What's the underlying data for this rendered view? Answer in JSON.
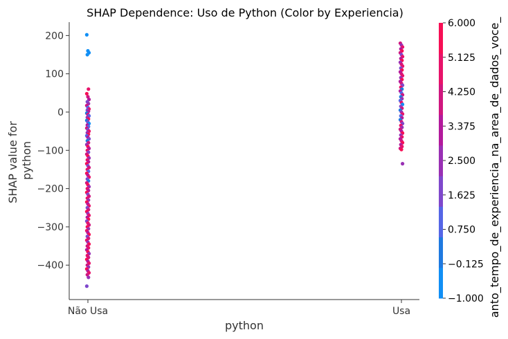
{
  "chart_data": {
    "type": "scatter",
    "title": "SHAP Dependence: Uso de Python (Color by Experiencia)",
    "xlabel": "python",
    "ylabel_lines": [
      "SHAP value for",
      "python"
    ],
    "categories": [
      "Não Usa",
      "Usa"
    ],
    "ylim": [
      -490,
      235
    ],
    "yticks": [
      {
        "value": 200,
        "label": "200"
      },
      {
        "value": 100,
        "label": "100"
      },
      {
        "value": 0,
        "label": "0"
      },
      {
        "value": -100,
        "label": "−100"
      },
      {
        "value": -200,
        "label": "−200"
      },
      {
        "value": -300,
        "label": "−300"
      },
      {
        "value": -400,
        "label": "−400"
      }
    ],
    "colorbar": {
      "label": "anto_tempo_de_experiencia_na_area_de_dados_voce_",
      "min": -1.0,
      "max": 6.0,
      "ticks": [
        "6.000",
        "5.125",
        "4.250",
        "3.375",
        "2.500",
        "1.625",
        "0.750",
        "−0.125",
        "−1.000"
      ],
      "colors": [
        "#118ff5",
        "#1f7ae0",
        "#5566e6",
        "#7f48cc",
        "#9930b4",
        "#b31a9c",
        "#d0177f",
        "#e8136a",
        "#f70f55"
      ]
    },
    "series": [
      {
        "name": "Não Usa",
        "x": 0,
        "points": [
          [
            202,
            0
          ],
          [
            160,
            0
          ],
          [
            155,
            0
          ],
          [
            150,
            0
          ],
          [
            60,
            7
          ],
          [
            48,
            8
          ],
          [
            40,
            6
          ],
          [
            33,
            5
          ],
          [
            27,
            3
          ],
          [
            22,
            4
          ],
          [
            17,
            6
          ],
          [
            12,
            2
          ],
          [
            8,
            7
          ],
          [
            5,
            3
          ],
          [
            2,
            5
          ],
          [
            -3,
            1
          ],
          [
            -6,
            6
          ],
          [
            -10,
            2
          ],
          [
            -14,
            4
          ],
          [
            -18,
            8
          ],
          [
            -22,
            1
          ],
          [
            -26,
            3
          ],
          [
            -30,
            0
          ],
          [
            -34,
            5
          ],
          [
            -38,
            2
          ],
          [
            -42,
            6
          ],
          [
            -46,
            3
          ],
          [
            -50,
            7
          ],
          [
            -54,
            4
          ],
          [
            -58,
            8
          ],
          [
            -62,
            2
          ],
          [
            -66,
            5
          ],
          [
            -70,
            3
          ],
          [
            -75,
            1
          ],
          [
            -80,
            6
          ],
          [
            -85,
            4
          ],
          [
            -90,
            8
          ],
          [
            -95,
            5
          ],
          [
            -100,
            7
          ],
          [
            -105,
            3
          ],
          [
            -110,
            6
          ],
          [
            -115,
            8
          ],
          [
            -120,
            4
          ],
          [
            -125,
            7
          ],
          [
            -130,
            5
          ],
          [
            -135,
            8
          ],
          [
            -140,
            3
          ],
          [
            -145,
            6
          ],
          [
            -150,
            7
          ],
          [
            -155,
            2
          ],
          [
            -160,
            8
          ],
          [
            -165,
            5
          ],
          [
            -170,
            7
          ],
          [
            -175,
            3
          ],
          [
            -180,
            1
          ],
          [
            -185,
            6
          ],
          [
            -190,
            8
          ],
          [
            -195,
            4
          ],
          [
            -200,
            7
          ],
          [
            -205,
            5
          ],
          [
            -210,
            8
          ],
          [
            -215,
            3
          ],
          [
            -220,
            6
          ],
          [
            -225,
            7
          ],
          [
            -230,
            4
          ],
          [
            -235,
            8
          ],
          [
            -240,
            5
          ],
          [
            -245,
            7
          ],
          [
            -250,
            3
          ],
          [
            -255,
            6
          ],
          [
            -260,
            8
          ],
          [
            -265,
            4
          ],
          [
            -270,
            7
          ],
          [
            -275,
            5
          ],
          [
            -280,
            8
          ],
          [
            -285,
            3
          ],
          [
            -290,
            7
          ],
          [
            -295,
            6
          ],
          [
            -300,
            8
          ],
          [
            -305,
            4
          ],
          [
            -310,
            7
          ],
          [
            -315,
            5
          ],
          [
            -320,
            8
          ],
          [
            -325,
            3
          ],
          [
            -330,
            6
          ],
          [
            -335,
            7
          ],
          [
            -340,
            4
          ],
          [
            -345,
            8
          ],
          [
            -350,
            6
          ],
          [
            -355,
            7
          ],
          [
            -360,
            5
          ],
          [
            -365,
            8
          ],
          [
            -370,
            4
          ],
          [
            -375,
            7
          ],
          [
            -380,
            6
          ],
          [
            -385,
            8
          ],
          [
            -390,
            5
          ],
          [
            -395,
            7
          ],
          [
            -400,
            6
          ],
          [
            -405,
            4
          ],
          [
            -410,
            8
          ],
          [
            -415,
            5
          ],
          [
            -420,
            7
          ],
          [
            -425,
            6
          ],
          [
            -432,
            4
          ],
          [
            -455,
            3
          ]
        ]
      },
      {
        "name": "Usa",
        "x": 1,
        "points": [
          [
            180,
            6
          ],
          [
            175,
            4
          ],
          [
            170,
            7
          ],
          [
            165,
            5
          ],
          [
            160,
            8
          ],
          [
            155,
            6
          ],
          [
            150,
            3
          ],
          [
            145,
            7
          ],
          [
            140,
            5
          ],
          [
            135,
            8
          ],
          [
            130,
            4
          ],
          [
            125,
            6
          ],
          [
            120,
            7
          ],
          [
            115,
            3
          ],
          [
            110,
            8
          ],
          [
            105,
            5
          ],
          [
            100,
            6
          ],
          [
            95,
            7
          ],
          [
            90,
            4
          ],
          [
            85,
            8
          ],
          [
            80,
            5
          ],
          [
            75,
            6
          ],
          [
            70,
            3
          ],
          [
            65,
            7
          ],
          [
            60,
            1
          ],
          [
            55,
            5
          ],
          [
            50,
            2
          ],
          [
            45,
            6
          ],
          [
            40,
            1
          ],
          [
            35,
            4
          ],
          [
            30,
            2
          ],
          [
            25,
            7
          ],
          [
            20,
            0
          ],
          [
            15,
            3
          ],
          [
            10,
            6
          ],
          [
            5,
            1
          ],
          [
            0,
            4
          ],
          [
            -5,
            7
          ],
          [
            -10,
            2
          ],
          [
            -15,
            5
          ],
          [
            -20,
            1
          ],
          [
            -25,
            6
          ],
          [
            -30,
            3
          ],
          [
            -35,
            7
          ],
          [
            -40,
            4
          ],
          [
            -45,
            6
          ],
          [
            -50,
            5
          ],
          [
            -55,
            8
          ],
          [
            -60,
            4
          ],
          [
            -65,
            7
          ],
          [
            -70,
            5
          ],
          [
            -75,
            6
          ],
          [
            -80,
            8
          ],
          [
            -85,
            5
          ],
          [
            -90,
            7
          ],
          [
            -95,
            6
          ],
          [
            -98,
            8
          ],
          [
            -135,
            4
          ]
        ]
      }
    ]
  }
}
